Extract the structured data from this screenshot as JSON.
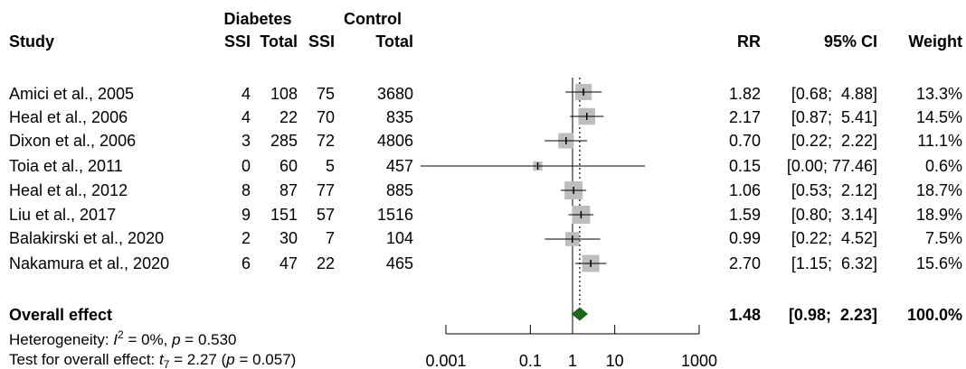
{
  "header": {
    "group1": "Diabetes",
    "group2": "Control",
    "study": "Study",
    "ssi1": "SSI",
    "total1": "Total",
    "ssi2": "SSI",
    "total2": "Total",
    "rr": "RR",
    "ci": "95% CI",
    "weight": "Weight"
  },
  "rows": [
    {
      "study": "Amici et al., 2005",
      "d_ssi": "4",
      "d_total": "108",
      "c_ssi": "75",
      "c_total": "3680",
      "rr_text": "1.82",
      "ci_text": "[0.68;  4.88]",
      "weight_text": "13.3%"
    },
    {
      "study": "Heal et al., 2006",
      "d_ssi": "4",
      "d_total": "22",
      "c_ssi": "70",
      "c_total": "835",
      "rr_text": "2.17",
      "ci_text": "[0.87;  5.41]",
      "weight_text": "14.5%"
    },
    {
      "study": "Dixon et al., 2006",
      "d_ssi": "3",
      "d_total": "285",
      "c_ssi": "72",
      "c_total": "4806",
      "rr_text": "0.70",
      "ci_text": "[0.22;  2.22]",
      "weight_text": "11.1%"
    },
    {
      "study": "Toia et al., 2011",
      "d_ssi": "0",
      "d_total": "60",
      "c_ssi": "5",
      "c_total": "457",
      "rr_text": "0.15",
      "ci_text": "[0.00; 77.46]",
      "weight_text": "0.6%"
    },
    {
      "study": "Heal et al., 2012",
      "d_ssi": "8",
      "d_total": "87",
      "c_ssi": "77",
      "c_total": "885",
      "rr_text": "1.06",
      "ci_text": "[0.53;  2.12]",
      "weight_text": "18.7%"
    },
    {
      "study": "Liu et al., 2017",
      "d_ssi": "9",
      "d_total": "151",
      "c_ssi": "57",
      "c_total": "1516",
      "rr_text": "1.59",
      "ci_text": "[0.80;  3.14]",
      "weight_text": "18.9%"
    },
    {
      "study": "Balakirski et al., 2020",
      "d_ssi": "2",
      "d_total": "30",
      "c_ssi": "7",
      "c_total": "104",
      "rr_text": "0.99",
      "ci_text": "[0.22;  4.52]",
      "weight_text": "7.5%"
    },
    {
      "study": "Nakamura et al., 2020",
      "d_ssi": "6",
      "d_total": "47",
      "c_ssi": "22",
      "c_total": "465",
      "rr_text": "2.70",
      "ci_text": "[1.15;  6.32]",
      "weight_text": "15.6%"
    }
  ],
  "overall": {
    "label": "Overall effect",
    "rr_text": "1.48",
    "ci_text": "[0.98;  2.23]",
    "weight_text": "100.0%",
    "het_prefix": "Heterogeneity: ",
    "het_i": "I",
    "het_sup": "2",
    "het_mid": " = 0%, ",
    "het_p": "p",
    "het_end": " = 0.530",
    "test_prefix": "Test for overall effect: ",
    "test_t": "t",
    "test_sub": "7",
    "test_mid": " = 2.27 (",
    "test_p": "p",
    "test_end": " = 0.057)"
  },
  "chart_data": {
    "type": "forest",
    "x_scale": "log",
    "xlim": [
      0.001,
      1000
    ],
    "ticks": [
      0.001,
      0.1,
      1,
      10,
      1000
    ],
    "tick_labels": [
      "0.001",
      "0.1",
      "1",
      "10",
      "1000"
    ],
    "null_line": 1,
    "studies": [
      {
        "name": "Amici et al., 2005",
        "rr": 1.82,
        "lower": 0.68,
        "upper": 4.88,
        "weight": 13.3
      },
      {
        "name": "Heal et al., 2006",
        "rr": 2.17,
        "lower": 0.87,
        "upper": 5.41,
        "weight": 14.5
      },
      {
        "name": "Dixon et al., 2006",
        "rr": 0.7,
        "lower": 0.22,
        "upper": 2.22,
        "weight": 11.1
      },
      {
        "name": "Toia et al., 2011",
        "rr": 0.15,
        "lower": 0.0,
        "upper": 77.46,
        "weight": 0.6
      },
      {
        "name": "Heal et al., 2012",
        "rr": 1.06,
        "lower": 0.53,
        "upper": 2.12,
        "weight": 18.7
      },
      {
        "name": "Liu et al., 2017",
        "rr": 1.59,
        "lower": 0.8,
        "upper": 3.14,
        "weight": 18.9
      },
      {
        "name": "Balakirski et al., 2020",
        "rr": 0.99,
        "lower": 0.22,
        "upper": 4.52,
        "weight": 7.5
      },
      {
        "name": "Nakamura et al., 2020",
        "rr": 2.7,
        "lower": 1.15,
        "upper": 6.32,
        "weight": 15.6
      }
    ],
    "overall": {
      "rr": 1.48,
      "lower": 0.98,
      "upper": 2.23,
      "weight": 100.0
    },
    "colors": {
      "square": "#bdbdbd",
      "diamond": "#1a6b1a",
      "line": "#000000"
    }
  }
}
